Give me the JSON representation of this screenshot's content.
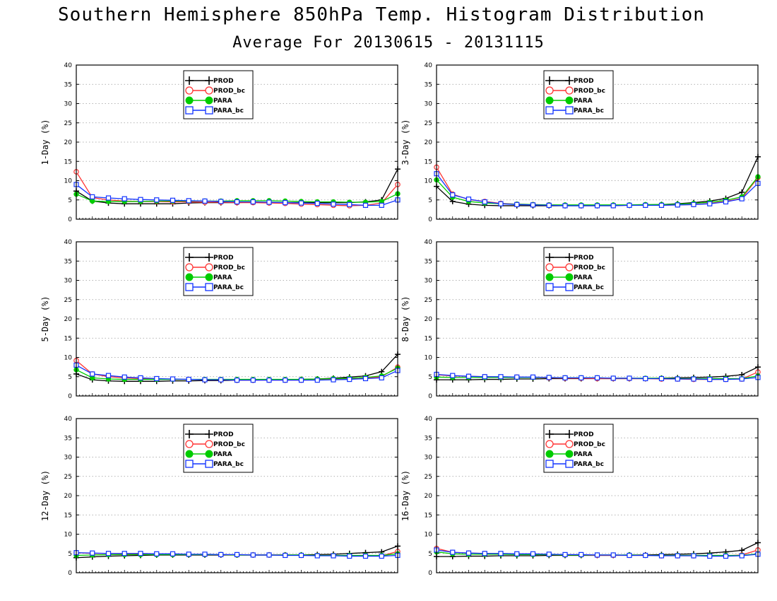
{
  "header": {
    "title": "Southern Hemisphere 850hPa Temp. Histogram Distribution",
    "subtitle": "Average For 20130615 - 20131115"
  },
  "chart_data": {
    "type": "line",
    "ylim": [
      0,
      40
    ],
    "yticks": [
      0,
      5,
      10,
      15,
      20,
      25,
      30,
      35,
      40
    ],
    "grid": true,
    "legend_placement": "top-center",
    "panels": [
      {
        "ylabel": "1-Day (%)",
        "series": [
          {
            "name": "PROD",
            "color": "#000000",
            "marker": "plus",
            "values": [
              7.3,
              4.7,
              4.2,
              4.0,
              4.0,
              4.0,
              4.0,
              4.2,
              4.3,
              4.3,
              4.3,
              4.4,
              4.3,
              4.3,
              4.3,
              4.3,
              4.3,
              4.3,
              4.5,
              5.0,
              13.0
            ]
          },
          {
            "name": "PROD_bc",
            "color": "#ff3333",
            "marker": "circle",
            "values": [
              12.3,
              5.6,
              5.0,
              4.7,
              4.6,
              4.6,
              4.5,
              4.5,
              4.4,
              4.4,
              4.3,
              4.3,
              4.2,
              4.1,
              3.9,
              3.8,
              3.6,
              3.5,
              3.6,
              4.2,
              9.0
            ]
          },
          {
            "name": "PARA",
            "color": "#00cc00",
            "marker": "dot",
            "values": [
              6.5,
              4.7,
              4.6,
              4.6,
              4.6,
              4.7,
              4.7,
              4.7,
              4.7,
              4.7,
              4.8,
              4.8,
              4.8,
              4.7,
              4.6,
              4.5,
              4.5,
              4.4,
              4.4,
              4.6,
              6.6
            ]
          },
          {
            "name": "PARA_bc",
            "color": "#1133ff",
            "marker": "square",
            "values": [
              9.0,
              5.8,
              5.5,
              5.3,
              5.1,
              5.0,
              4.9,
              4.8,
              4.7,
              4.6,
              4.5,
              4.5,
              4.4,
              4.3,
              4.2,
              4.1,
              3.9,
              3.8,
              3.6,
              3.6,
              5.0
            ]
          }
        ]
      },
      {
        "ylabel": "3-Day (%)",
        "series": [
          {
            "name": "PROD",
            "color": "#000000",
            "marker": "plus",
            "values": [
              8.5,
              4.6,
              3.9,
              3.6,
              3.5,
              3.5,
              3.5,
              3.5,
              3.5,
              3.5,
              3.5,
              3.6,
              3.6,
              3.7,
              3.8,
              4.0,
              4.3,
              4.7,
              5.4,
              7.0,
              16.2
            ]
          },
          {
            "name": "PROD_bc",
            "color": "#ff3333",
            "marker": "circle",
            "values": [
              13.5,
              6.5,
              5.1,
              4.6,
              4.1,
              3.9,
              3.8,
              3.7,
              3.6,
              3.5,
              3.5,
              3.5,
              3.6,
              3.6,
              3.6,
              3.7,
              3.8,
              4.1,
              4.6,
              5.4,
              10.8
            ]
          },
          {
            "name": "PARA",
            "color": "#00cc00",
            "marker": "dot",
            "values": [
              10.2,
              5.7,
              4.6,
              4.2,
              4.0,
              3.9,
              3.8,
              3.7,
              3.7,
              3.7,
              3.7,
              3.7,
              3.7,
              3.8,
              3.8,
              3.9,
              4.1,
              4.4,
              4.9,
              5.8,
              11.0
            ]
          },
          {
            "name": "PARA_bc",
            "color": "#1133ff",
            "marker": "square",
            "values": [
              11.8,
              6.3,
              5.2,
              4.5,
              4.0,
              3.8,
              3.7,
              3.6,
              3.5,
              3.5,
              3.5,
              3.5,
              3.6,
              3.6,
              3.6,
              3.7,
              3.8,
              4.0,
              4.5,
              5.3,
              9.3
            ]
          }
        ]
      },
      {
        "ylabel": "5-Day (%)",
        "series": [
          {
            "name": "PROD",
            "color": "#000000",
            "marker": "plus",
            "values": [
              5.7,
              4.2,
              3.9,
              3.8,
              3.8,
              3.8,
              3.9,
              3.9,
              4.0,
              4.0,
              4.1,
              4.1,
              4.2,
              4.2,
              4.3,
              4.4,
              4.6,
              4.9,
              5.2,
              6.3,
              10.8
            ]
          },
          {
            "name": "PROD_bc",
            "color": "#ff3333",
            "marker": "circle",
            "values": [
              9.2,
              5.7,
              5.0,
              4.7,
              4.5,
              4.4,
              4.3,
              4.3,
              4.2,
              4.2,
              4.1,
              4.1,
              4.1,
              4.1,
              4.1,
              4.2,
              4.3,
              4.4,
              4.6,
              5.0,
              7.5
            ]
          },
          {
            "name": "PARA",
            "color": "#00cc00",
            "marker": "dot",
            "values": [
              6.8,
              4.7,
              4.4,
              4.3,
              4.3,
              4.3,
              4.3,
              4.3,
              4.3,
              4.3,
              4.3,
              4.3,
              4.3,
              4.3,
              4.3,
              4.4,
              4.5,
              4.6,
              4.8,
              5.2,
              7.2
            ]
          },
          {
            "name": "PARA_bc",
            "color": "#1133ff",
            "marker": "square",
            "values": [
              8.0,
              5.7,
              5.3,
              4.9,
              4.7,
              4.5,
              4.4,
              4.3,
              4.2,
              4.2,
              4.1,
              4.1,
              4.1,
              4.1,
              4.1,
              4.1,
              4.2,
              4.3,
              4.5,
              4.7,
              6.6
            ]
          }
        ]
      },
      {
        "ylabel": "8-Day (%)",
        "series": [
          {
            "name": "PROD",
            "color": "#000000",
            "marker": "plus",
            "values": [
              4.2,
              4.2,
              4.2,
              4.3,
              4.3,
              4.4,
              4.4,
              4.5,
              4.5,
              4.5,
              4.5,
              4.5,
              4.5,
              4.5,
              4.6,
              4.7,
              4.8,
              4.9,
              5.1,
              5.5,
              7.5
            ]
          },
          {
            "name": "PROD_bc",
            "color": "#ff3333",
            "marker": "circle",
            "values": [
              5.5,
              5.2,
              5.1,
              5.0,
              4.9,
              4.9,
              4.8,
              4.7,
              4.6,
              4.6,
              4.5,
              4.5,
              4.5,
              4.5,
              4.4,
              4.4,
              4.3,
              4.3,
              4.3,
              4.4,
              6.2
            ]
          },
          {
            "name": "PARA",
            "color": "#00cc00",
            "marker": "dot",
            "values": [
              4.9,
              4.8,
              4.8,
              4.8,
              4.8,
              4.8,
              4.8,
              4.8,
              4.7,
              4.7,
              4.7,
              4.6,
              4.6,
              4.6,
              4.6,
              4.5,
              4.5,
              4.5,
              4.5,
              4.5,
              5.2
            ]
          },
          {
            "name": "PARA_bc",
            "color": "#1133ff",
            "marker": "square",
            "values": [
              5.6,
              5.3,
              5.1,
              5.0,
              5.0,
              4.9,
              4.9,
              4.8,
              4.7,
              4.7,
              4.7,
              4.6,
              4.6,
              4.5,
              4.5,
              4.4,
              4.4,
              4.3,
              4.3,
              4.4,
              4.8
            ]
          }
        ]
      },
      {
        "ylabel": "12-Day (%)",
        "series": [
          {
            "name": "PROD",
            "color": "#000000",
            "marker": "plus",
            "values": [
              3.9,
              4.1,
              4.3,
              4.4,
              4.5,
              4.6,
              4.6,
              4.6,
              4.6,
              4.6,
              4.6,
              4.6,
              4.6,
              4.6,
              4.6,
              4.7,
              4.8,
              5.0,
              5.2,
              5.4,
              6.9
            ]
          },
          {
            "name": "PROD_bc",
            "color": "#ff3333",
            "marker": "circle",
            "values": [
              5.2,
              5.0,
              5.0,
              4.9,
              4.9,
              4.8,
              4.8,
              4.7,
              4.7,
              4.7,
              4.6,
              4.6,
              4.6,
              4.6,
              4.5,
              4.5,
              4.5,
              4.4,
              4.4,
              4.4,
              5.5
            ]
          },
          {
            "name": "PARA",
            "color": "#00cc00",
            "marker": "dot",
            "values": [
              4.5,
              4.6,
              4.7,
              4.7,
              4.7,
              4.7,
              4.7,
              4.7,
              4.7,
              4.7,
              4.6,
              4.6,
              4.6,
              4.6,
              4.6,
              4.5,
              4.5,
              4.5,
              4.5,
              4.5,
              4.9
            ]
          },
          {
            "name": "PARA_bc",
            "color": "#1133ff",
            "marker": "square",
            "values": [
              5.2,
              5.1,
              5.0,
              5.0,
              5.0,
              4.9,
              4.9,
              4.8,
              4.8,
              4.7,
              4.7,
              4.6,
              4.6,
              4.5,
              4.5,
              4.4,
              4.4,
              4.3,
              4.3,
              4.3,
              4.5
            ]
          }
        ]
      },
      {
        "ylabel": "16-Day (%)",
        "series": [
          {
            "name": "PROD",
            "color": "#000000",
            "marker": "plus",
            "values": [
              4.2,
              4.2,
              4.3,
              4.3,
              4.4,
              4.4,
              4.4,
              4.5,
              4.5,
              4.5,
              4.5,
              4.5,
              4.6,
              4.6,
              4.7,
              4.8,
              4.9,
              5.1,
              5.4,
              5.8,
              7.8
            ]
          },
          {
            "name": "PROD_bc",
            "color": "#ff3333",
            "marker": "circle",
            "values": [
              6.3,
              5.3,
              5.1,
              5.0,
              4.9,
              4.8,
              4.8,
              4.7,
              4.6,
              4.6,
              4.5,
              4.5,
              4.5,
              4.5,
              4.4,
              4.4,
              4.4,
              4.4,
              4.4,
              4.6,
              5.9
            ]
          },
          {
            "name": "PARA",
            "color": "#00cc00",
            "marker": "dot",
            "values": [
              5.4,
              4.9,
              4.8,
              4.8,
              4.8,
              4.7,
              4.7,
              4.7,
              4.6,
              4.6,
              4.6,
              4.6,
              4.6,
              4.5,
              4.5,
              4.5,
              4.5,
              4.5,
              4.5,
              4.5,
              4.9
            ]
          },
          {
            "name": "PARA_bc",
            "color": "#1133ff",
            "marker": "square",
            "values": [
              5.9,
              5.3,
              5.1,
              5.0,
              5.0,
              4.9,
              4.9,
              4.8,
              4.7,
              4.7,
              4.6,
              4.6,
              4.5,
              4.5,
              4.4,
              4.4,
              4.4,
              4.3,
              4.3,
              4.4,
              4.8
            ]
          }
        ]
      }
    ]
  }
}
